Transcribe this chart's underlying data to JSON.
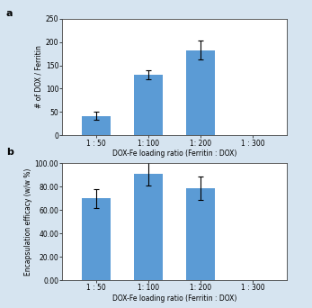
{
  "categories": [
    "1 : 50",
    "1: 100",
    "1: 200",
    "1 : 300"
  ],
  "panel_a": {
    "values": [
      42,
      130,
      182,
      0
    ],
    "errors": [
      8,
      10,
      20,
      0
    ],
    "ylabel": "# of DOX / Ferritin",
    "ylim": [
      0,
      250
    ],
    "yticks": [
      0,
      50,
      100,
      150,
      200,
      250
    ],
    "xlabel": "DOX-Fe loading ratio (Ferritin : DOX)",
    "label": "a"
  },
  "panel_b": {
    "values": [
      70,
      91,
      79,
      0.5
    ],
    "errors": [
      8,
      10,
      10,
      0
    ],
    "ylabel": "Encapsulation efficacy (w/w %)",
    "ylim": [
      0,
      100
    ],
    "yticks": [
      0.0,
      20.0,
      40.0,
      60.0,
      80.0,
      100.0
    ],
    "ytick_labels": [
      "0.00",
      "20.00",
      "40.00",
      "60.00",
      "80.00",
      "100.00"
    ],
    "xlabel": "DOX-Fe loading ratio (Ferritin : DOX)",
    "label": "b"
  },
  "bar_color": "#5B9BD5",
  "bar_width": 0.55,
  "bg_color": "#d6e4f0",
  "plot_bg": "#ffffff",
  "tick_fontsize": 5.5,
  "axis_label_fontsize": 5.5,
  "panel_label_fontsize": 8
}
